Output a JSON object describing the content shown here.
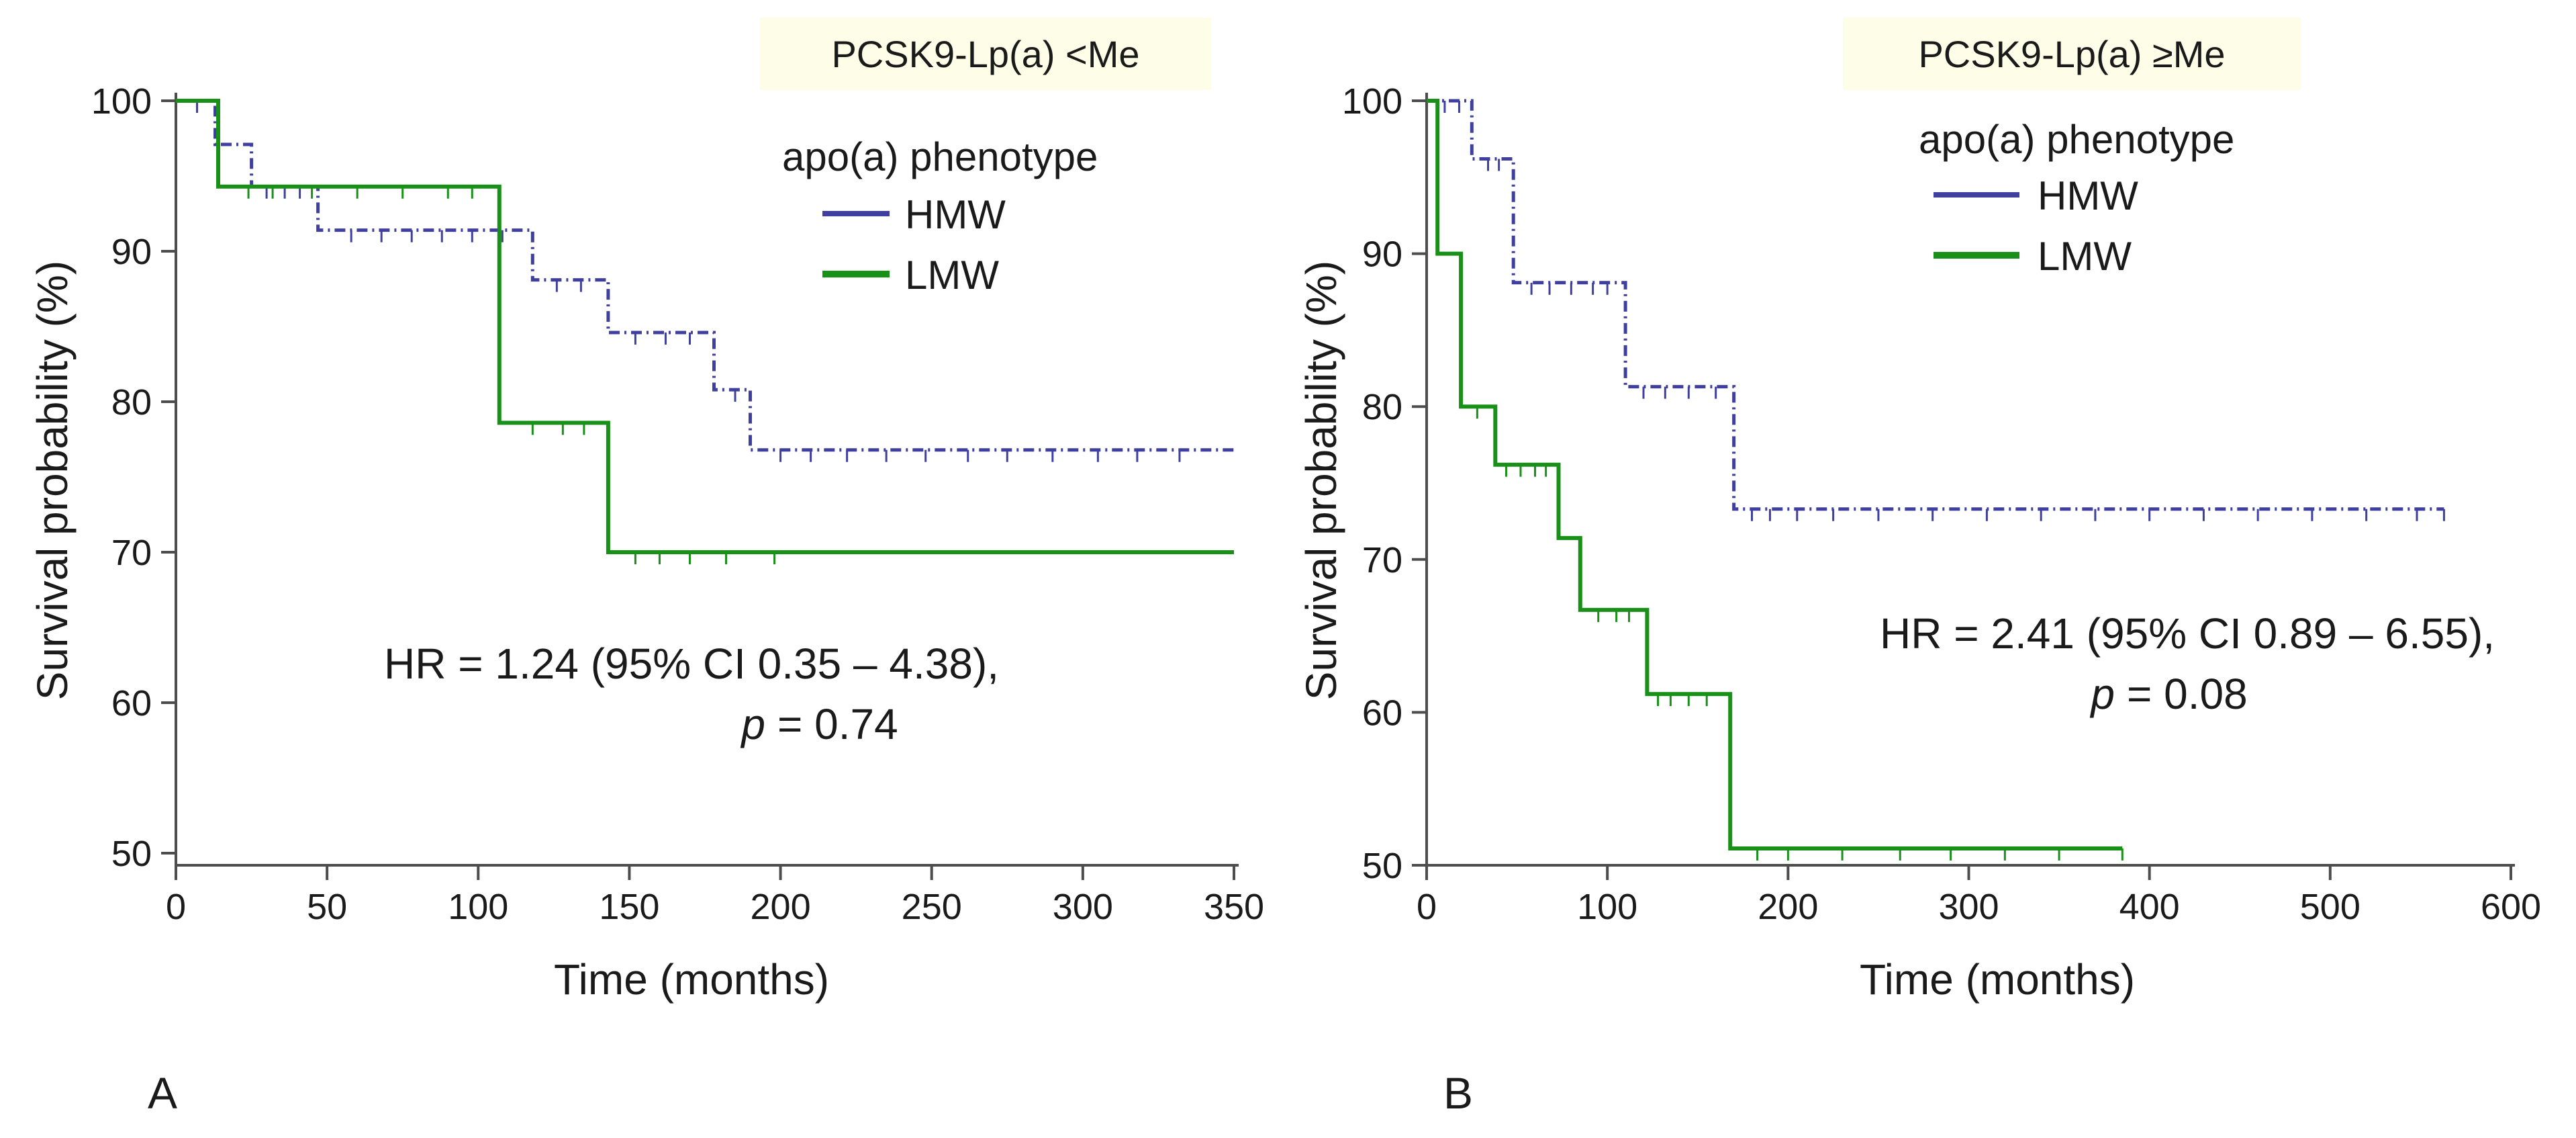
{
  "colors": {
    "HMW": "#3f3fa0",
    "LMW": "#199119",
    "axis": "#4d4d4d",
    "label_box": "#fefde7"
  },
  "chart_data": [
    {
      "type": "line",
      "subtype": "kaplan-meier",
      "panel_label": "A",
      "subset_label": "PCSK9-Lp(a) <Me",
      "xlabel": "Time (months)",
      "ylabel": "Survival probability (%)",
      "xlim": [
        0,
        350
      ],
      "ylim": [
        50,
        100
      ],
      "xticks": [
        0,
        50,
        100,
        150,
        200,
        250,
        300,
        350
      ],
      "yticks": [
        50,
        60,
        70,
        80,
        90,
        100
      ],
      "legend_title": "apo(a) phenotype",
      "legend_position": "top-right",
      "hr_line": "HR = 1.24 (95% CI 0.35 – 4.38),",
      "p_symbol": "p",
      "p_value": "= 0.74",
      "series": [
        {
          "name": "HMW",
          "style": "dash-dot",
          "steps": [
            [
              0,
              100
            ],
            [
              13,
              100
            ],
            [
              13,
              97.1
            ],
            [
              25,
              97.1
            ],
            [
              25,
              94.3
            ],
            [
              47,
              94.3
            ],
            [
              47,
              91.4
            ],
            [
              118,
              91.4
            ],
            [
              118,
              88.1
            ],
            [
              143,
              88.1
            ],
            [
              143,
              84.6
            ],
            [
              178,
              84.6
            ],
            [
              178,
              80.8
            ],
            [
              190,
              80.8
            ],
            [
              190,
              76.8
            ],
            [
              350,
              76.8
            ]
          ],
          "censored": [
            [
              7,
              100
            ],
            [
              30,
              94.3
            ],
            [
              36,
              94.3
            ],
            [
              41,
              94.3
            ],
            [
              58,
              91.4
            ],
            [
              68,
              91.4
            ],
            [
              78,
              91.4
            ],
            [
              88,
              91.4
            ],
            [
              98,
              91.4
            ],
            [
              108,
              91.4
            ],
            [
              126,
              88.1
            ],
            [
              134,
              88.1
            ],
            [
              152,
              84.6
            ],
            [
              162,
              84.6
            ],
            [
              170,
              84.6
            ],
            [
              185,
              80.8
            ],
            [
              200,
              76.8
            ],
            [
              210,
              76.8
            ],
            [
              222,
              76.8
            ],
            [
              235,
              76.8
            ],
            [
              248,
              76.8
            ],
            [
              262,
              76.8
            ],
            [
              275,
              76.8
            ],
            [
              290,
              76.8
            ],
            [
              305,
              76.8
            ],
            [
              318,
              76.8
            ],
            [
              332,
              76.8
            ]
          ]
        },
        {
          "name": "LMW",
          "style": "solid",
          "steps": [
            [
              0,
              100
            ],
            [
              14,
              100
            ],
            [
              14,
              94.3
            ],
            [
              107,
              94.3
            ],
            [
              107,
              78.6
            ],
            [
              143,
              78.6
            ],
            [
              143,
              70.0
            ],
            [
              350,
              70.0
            ]
          ],
          "censored": [
            [
              24,
              94.3
            ],
            [
              32,
              94.3
            ],
            [
              45,
              94.3
            ],
            [
              60,
              94.3
            ],
            [
              75,
              94.3
            ],
            [
              90,
              94.3
            ],
            [
              98,
              94.3
            ],
            [
              118,
              78.6
            ],
            [
              128,
              78.6
            ],
            [
              135,
              78.6
            ],
            [
              152,
              70.0
            ],
            [
              160,
              70.0
            ],
            [
              170,
              70.0
            ],
            [
              182,
              70.0
            ],
            [
              198,
              70.0
            ]
          ]
        }
      ]
    },
    {
      "type": "line",
      "subtype": "kaplan-meier",
      "panel_label": "B",
      "subset_label": "PCSK9-Lp(a) ≥Me",
      "xlabel": "Time (months)",
      "ylabel": "Survival probability (%)",
      "xlim": [
        0,
        600
      ],
      "ylim": [
        50,
        100
      ],
      "xticks": [
        0,
        100,
        200,
        300,
        400,
        500,
        600
      ],
      "yticks": [
        50,
        60,
        70,
        80,
        90,
        100
      ],
      "legend_title": "apo(a) phenotype",
      "legend_position": "top-left",
      "hr_line": "HR = 2.41 (95% CI 0.89 – 6.55),",
      "p_symbol": "p",
      "p_value": "= 0.08",
      "series": [
        {
          "name": "HMW",
          "style": "dash-dot",
          "steps": [
            [
              0,
              100
            ],
            [
              25,
              100
            ],
            [
              25,
              96.2
            ],
            [
              48,
              96.2
            ],
            [
              48,
              88.1
            ],
            [
              110,
              88.1
            ],
            [
              110,
              81.3
            ],
            [
              170,
              81.3
            ],
            [
              170,
              73.3
            ],
            [
              563,
              73.3
            ]
          ],
          "censored": [
            [
              10,
              100
            ],
            [
              18,
              100
            ],
            [
              34,
              96.2
            ],
            [
              40,
              96.2
            ],
            [
              58,
              88.1
            ],
            [
              68,
              88.1
            ],
            [
              80,
              88.1
            ],
            [
              92,
              88.1
            ],
            [
              100,
              88.1
            ],
            [
              120,
              81.3
            ],
            [
              132,
              81.3
            ],
            [
              145,
              81.3
            ],
            [
              160,
              81.3
            ],
            [
              180,
              73.3
            ],
            [
              190,
              73.3
            ],
            [
              205,
              73.3
            ],
            [
              225,
              73.3
            ],
            [
              250,
              73.3
            ],
            [
              280,
              73.3
            ],
            [
              310,
              73.3
            ],
            [
              340,
              73.3
            ],
            [
              370,
              73.3
            ],
            [
              400,
              73.3
            ],
            [
              430,
              73.3
            ],
            [
              460,
              73.3
            ],
            [
              490,
              73.3
            ],
            [
              520,
              73.3
            ],
            [
              548,
              73.3
            ],
            [
              563,
              73.3
            ]
          ]
        },
        {
          "name": "LMW",
          "style": "solid",
          "steps": [
            [
              0,
              100
            ],
            [
              6,
              100
            ],
            [
              6,
              90.0
            ],
            [
              19,
              90.0
            ],
            [
              19,
              80.0
            ],
            [
              38,
              80.0
            ],
            [
              38,
              76.2
            ],
            [
              73,
              76.2
            ],
            [
              73,
              71.4
            ],
            [
              85,
              71.4
            ],
            [
              85,
              66.7
            ],
            [
              122,
              66.7
            ],
            [
              122,
              61.2
            ],
            [
              168,
              61.2
            ],
            [
              168,
              51.1
            ],
            [
              385,
              51.1
            ]
          ],
          "censored": [
            [
              28,
              80.0
            ],
            [
              44,
              76.2
            ],
            [
              52,
              76.2
            ],
            [
              60,
              76.2
            ],
            [
              66,
              76.2
            ],
            [
              95,
              66.7
            ],
            [
              105,
              66.7
            ],
            [
              112,
              66.7
            ],
            [
              128,
              61.2
            ],
            [
              135,
              61.2
            ],
            [
              145,
              61.2
            ],
            [
              155,
              61.2
            ],
            [
              183,
              51.1
            ],
            [
              200,
              51.1
            ],
            [
              230,
              51.1
            ],
            [
              262,
              51.1
            ],
            [
              290,
              51.1
            ],
            [
              320,
              51.1
            ],
            [
              350,
              51.1
            ],
            [
              385,
              51.1
            ]
          ]
        }
      ]
    }
  ]
}
